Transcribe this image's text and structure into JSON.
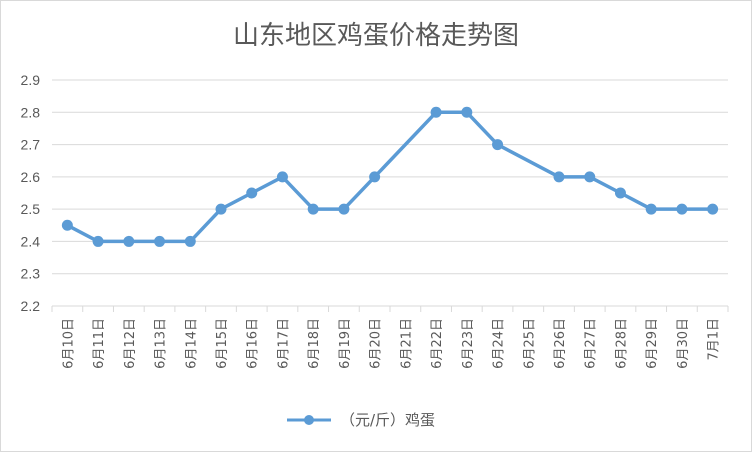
{
  "chart_data": {
    "type": "line",
    "title": "山东地区鸡蛋价格走势图",
    "xlabel": "",
    "ylabel": "",
    "categories": [
      "6月10日",
      "6月11日",
      "6月12日",
      "6月13日",
      "6月14日",
      "6月15日",
      "6月16日",
      "6月17日",
      "6月18日",
      "6月19日",
      "6月20日",
      "6月21日",
      "6月22日",
      "6月23日",
      "6月24日",
      "6月25日",
      "6月26日",
      "6月27日",
      "6月28日",
      "6月29日",
      "6月30日",
      "7月1日"
    ],
    "series": [
      {
        "name": "（元/斤）鸡蛋",
        "color": "#5b9bd5",
        "values": [
          2.45,
          2.4,
          2.4,
          2.4,
          2.4,
          2.5,
          2.55,
          2.6,
          2.5,
          2.5,
          2.6,
          null,
          2.8,
          2.8,
          2.7,
          null,
          2.6,
          2.6,
          2.55,
          2.5,
          2.5,
          2.5
        ]
      }
    ],
    "ylim": [
      2.2,
      2.9
    ],
    "yticks": [
      "2.2",
      "2.3",
      "2.4",
      "2.5",
      "2.6",
      "2.7",
      "2.8",
      "2.9"
    ],
    "grid": true,
    "legend": "bottom"
  }
}
